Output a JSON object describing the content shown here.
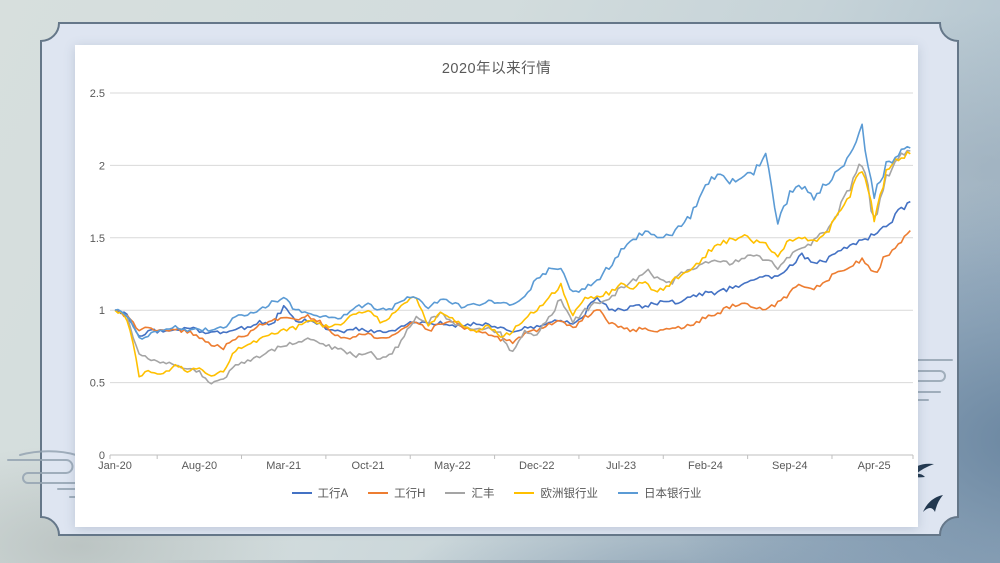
{
  "slide": {
    "style": "ink-wash-presentation-slide",
    "background_colors": [
      "#d7dfdd",
      "#a3b8c8",
      "#7d95aa"
    ],
    "frame_fill": "#dee5f1",
    "frame_stroke": "#657789",
    "card_color": "#ffffff"
  },
  "decorations": {
    "cloud_left_icon": "auspicious-cloud-scroll",
    "cloud_right_icon": "auspicious-cloud-scroll",
    "bird_icons": [
      "swallow-silhouette",
      "swallow-silhouette"
    ],
    "decoration_color": "#95a4b2",
    "bird_color": "#22384f"
  },
  "chart_data": {
    "type": "line",
    "title": "2020年以来行情",
    "title_color": "#595959",
    "x_interval": "monthly",
    "x_start": "Jan-2020",
    "x_tick_labels": [
      "Jan-20",
      "Aug-20",
      "Mar-21",
      "Oct-21",
      "May-22",
      "Dec-22",
      "Jul-23",
      "Feb-24",
      "Sep-24",
      "Apr-25"
    ],
    "x_tick_month_indices": [
      0,
      7,
      14,
      21,
      28,
      35,
      42,
      49,
      56,
      63
    ],
    "ylim": [
      0,
      2.5
    ],
    "y_ticks": [
      0,
      0.5,
      1,
      1.5,
      2,
      2.5
    ],
    "y_tick_labels": [
      "0",
      "0.5",
      "1",
      "1.5",
      "2",
      "2.5"
    ],
    "grid": true,
    "gridline_color": "#d9d9d9",
    "axis_color": "#bfbfbf",
    "tick_label_color": "#595959",
    "legend_position": "bottom",
    "series": [
      {
        "name": "工行A",
        "color": "#4472C4",
        "values": [
          1.0,
          0.97,
          0.82,
          0.86,
          0.85,
          0.86,
          0.88,
          0.86,
          0.84,
          0.85,
          0.87,
          0.88,
          0.92,
          0.9,
          1.02,
          0.92,
          0.93,
          0.9,
          0.86,
          0.85,
          0.87,
          0.86,
          0.85,
          0.86,
          0.9,
          0.92,
          0.9,
          0.91,
          0.89,
          0.9,
          0.91,
          0.9,
          0.88,
          0.85,
          0.88,
          0.88,
          0.92,
          0.93,
          0.91,
          0.98,
          1.1,
          1.0,
          1.0,
          1.02,
          1.03,
          1.05,
          1.06,
          1.05,
          1.1,
          1.12,
          1.12,
          1.15,
          1.18,
          1.2,
          1.25,
          1.22,
          1.3,
          1.38,
          1.32,
          1.35,
          1.42,
          1.45,
          1.48,
          1.52,
          1.58,
          1.68,
          1.75
        ]
      },
      {
        "name": "工行H",
        "color": "#ED7D31",
        "values": [
          1.0,
          0.95,
          0.86,
          0.88,
          0.85,
          0.87,
          0.85,
          0.82,
          0.76,
          0.74,
          0.8,
          0.83,
          0.9,
          0.92,
          0.95,
          0.93,
          0.96,
          0.92,
          0.85,
          0.8,
          0.82,
          0.84,
          0.8,
          0.82,
          0.88,
          0.92,
          0.86,
          0.9,
          0.92,
          0.88,
          0.85,
          0.84,
          0.8,
          0.78,
          0.83,
          0.86,
          0.9,
          0.92,
          0.88,
          0.95,
          1.02,
          0.92,
          0.88,
          0.86,
          0.88,
          0.85,
          0.87,
          0.88,
          0.9,
          0.95,
          0.98,
          1.02,
          1.05,
          1.02,
          1.0,
          1.05,
          1.12,
          1.18,
          1.15,
          1.2,
          1.28,
          1.3,
          1.35,
          1.25,
          1.38,
          1.45,
          1.55
        ]
      },
      {
        "name": "汇丰",
        "color": "#A5A5A5",
        "values": [
          1.0,
          0.96,
          0.7,
          0.65,
          0.64,
          0.62,
          0.6,
          0.57,
          0.49,
          0.52,
          0.62,
          0.65,
          0.68,
          0.72,
          0.76,
          0.78,
          0.8,
          0.78,
          0.74,
          0.72,
          0.68,
          0.72,
          0.66,
          0.7,
          0.82,
          0.95,
          0.92,
          0.98,
          0.92,
          0.88,
          0.86,
          0.88,
          0.84,
          0.7,
          0.85,
          0.83,
          0.95,
          1.08,
          0.92,
          1.0,
          1.05,
          1.08,
          1.15,
          1.2,
          1.28,
          1.22,
          1.18,
          1.25,
          1.28,
          1.32,
          1.35,
          1.32,
          1.35,
          1.38,
          1.35,
          1.3,
          1.38,
          1.42,
          1.48,
          1.55,
          1.68,
          1.85,
          2.02,
          1.62,
          1.92,
          2.05,
          2.1
        ]
      },
      {
        "name": "欧洲银行业",
        "color": "#FFC000",
        "values": [
          1.0,
          0.96,
          0.55,
          0.58,
          0.56,
          0.62,
          0.58,
          0.6,
          0.55,
          0.58,
          0.72,
          0.76,
          0.8,
          0.84,
          0.86,
          0.88,
          0.93,
          0.9,
          0.88,
          0.92,
          0.98,
          1.0,
          0.92,
          0.96,
          1.05,
          1.1,
          0.88,
          0.98,
          0.95,
          0.88,
          0.85,
          0.9,
          0.82,
          0.85,
          0.95,
          1.0,
          1.08,
          1.18,
          0.96,
          1.08,
          1.1,
          1.12,
          1.18,
          1.15,
          1.2,
          1.12,
          1.18,
          1.25,
          1.3,
          1.38,
          1.45,
          1.48,
          1.52,
          1.48,
          1.45,
          1.38,
          1.48,
          1.5,
          1.48,
          1.52,
          1.65,
          1.8,
          2.0,
          1.62,
          1.95,
          2.05,
          2.08
        ]
      },
      {
        "name": "日本银行业",
        "color": "#5B9BD5",
        "values": [
          1.0,
          0.97,
          0.8,
          0.84,
          0.86,
          0.88,
          0.85,
          0.87,
          0.86,
          0.88,
          0.95,
          0.97,
          1.0,
          1.05,
          1.08,
          1.0,
          0.98,
          0.96,
          0.94,
          0.96,
          1.02,
          1.04,
          1.0,
          1.02,
          1.08,
          1.1,
          1.02,
          1.08,
          1.05,
          1.02,
          1.04,
          1.06,
          1.04,
          1.05,
          1.08,
          1.22,
          1.28,
          1.3,
          1.12,
          1.15,
          1.2,
          1.3,
          1.42,
          1.48,
          1.55,
          1.5,
          1.52,
          1.58,
          1.68,
          1.85,
          1.95,
          1.88,
          1.92,
          1.95,
          2.08,
          1.6,
          1.82,
          1.85,
          1.78,
          1.88,
          1.95,
          2.1,
          2.25,
          1.78,
          2.0,
          2.08,
          2.12
        ]
      }
    ]
  }
}
